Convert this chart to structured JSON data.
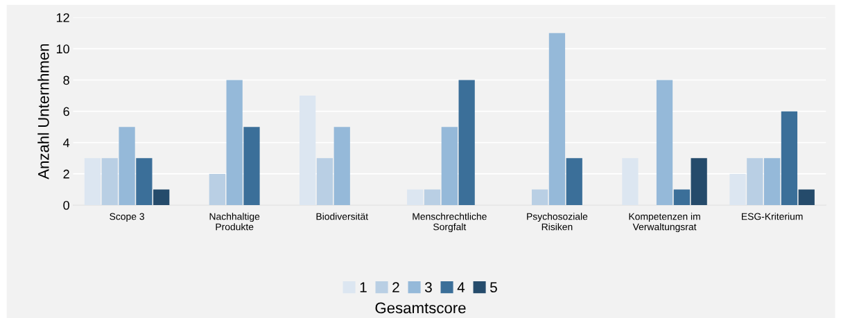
{
  "chart_data": {
    "type": "bar",
    "ylabel": "Anzahl Unternhmen",
    "xlabel": "Gesamtscore",
    "categories": [
      "Scope 3",
      "Nachhaltige\nProdukte",
      "Biodiversität",
      "Menschrechtliche\nSorgfalt",
      "Psychosoziale\nRisiken",
      "Kompetenzen im\nVerwaltungsrat",
      "ESG-Kriterium"
    ],
    "series": [
      {
        "name": "1",
        "color": "#dce6f1",
        "values": [
          3,
          0,
          7,
          1,
          0,
          3,
          2
        ]
      },
      {
        "name": "2",
        "color": "#b9cfe4",
        "values": [
          3,
          2,
          3,
          1,
          1,
          0,
          3
        ]
      },
      {
        "name": "3",
        "color": "#95b9d9",
        "values": [
          5,
          8,
          5,
          5,
          11,
          8,
          3
        ]
      },
      {
        "name": "4",
        "color": "#3b6f99",
        "values": [
          3,
          5,
          0,
          8,
          3,
          1,
          6
        ]
      },
      {
        "name": "5",
        "color": "#254b6b",
        "values": [
          1,
          0,
          0,
          0,
          0,
          3,
          1
        ]
      }
    ],
    "ylim": [
      0,
      12
    ],
    "yticks": [
      0,
      2,
      4,
      6,
      8,
      10,
      12
    ],
    "grid": "y",
    "legend": "bottom"
  }
}
